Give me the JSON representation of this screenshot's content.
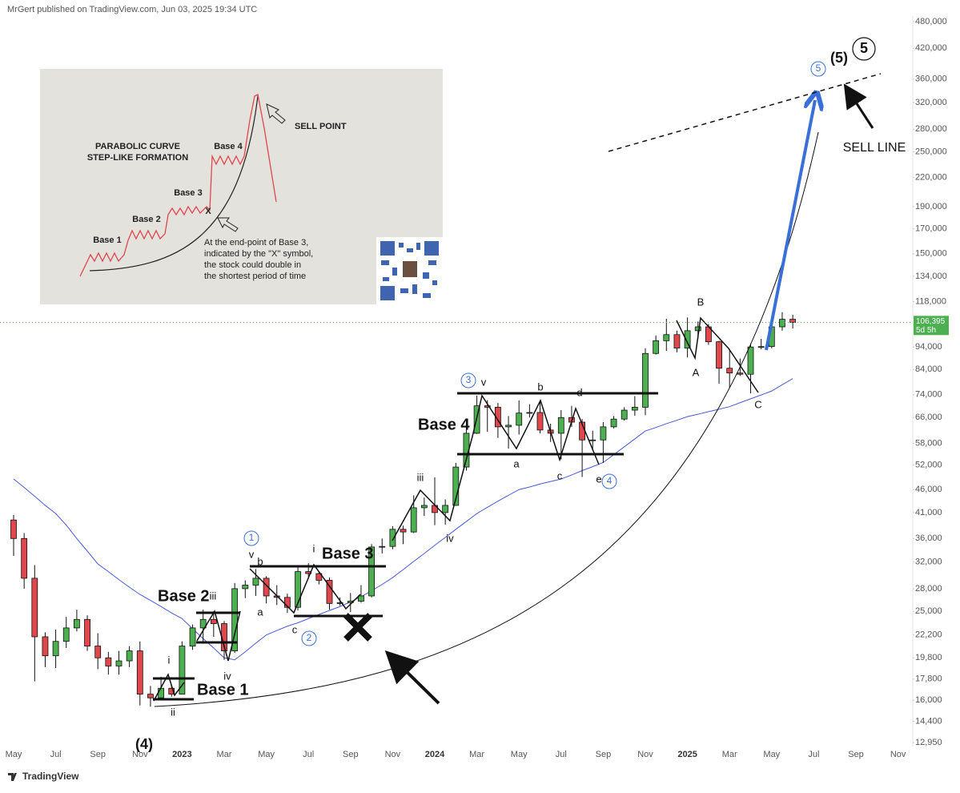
{
  "header": {
    "text": "MrGert published on TradingView.com, Jun 03, 2025 19:34 UTC"
  },
  "footer": {
    "text": "TradingView"
  },
  "inset": {
    "title_lines": [
      "PARABOLIC CURVE",
      "STEP-LIKE FORMATION"
    ],
    "sell_point": "SELL POINT",
    "bases": [
      "Base 1",
      "Base 2",
      "Base 3",
      "Base 4"
    ],
    "x_mark": "X",
    "note_lines": [
      "At the end-point of Base 3,",
      "indicated by the \"X\" symbol,",
      "the stock could double in",
      "the shortest period of time"
    ]
  },
  "chart_data": {
    "type": "candlestick",
    "log_scale": true,
    "grid": false,
    "up_color": "#4caf50",
    "down_color": "#e0474c",
    "ma_color": "#4a5ad8",
    "categories": [
      "May",
      null,
      null,
      null,
      "Jul",
      null,
      null,
      null,
      "Sep",
      null,
      null,
      null,
      "Nov",
      null,
      null,
      null,
      "2023",
      null,
      null,
      null,
      "Mar",
      null,
      null,
      null,
      "May",
      null,
      null,
      null,
      "Jul",
      null,
      null,
      null,
      "Sep",
      null,
      null,
      null,
      "Nov",
      null,
      null,
      null,
      "2024",
      null,
      null,
      null,
      "Mar",
      null,
      null,
      null,
      "May",
      null,
      null,
      null,
      "Jul",
      null,
      null,
      null,
      "Sep",
      null,
      null,
      null,
      "Nov",
      null,
      null,
      null,
      "2025",
      null,
      null,
      null,
      "Mar",
      null,
      null,
      null,
      "May",
      null,
      null,
      null,
      "Jul",
      null,
      null,
      null,
      "Sep",
      null,
      null,
      null,
      "Nov"
    ],
    "open": [
      39500,
      36000,
      29500,
      22000,
      20000,
      21500,
      23000,
      24000,
      21000,
      19800,
      19000,
      19500,
      20500,
      16500,
      16200,
      17000,
      16500,
      21000,
      23000,
      24000,
      23500,
      20500,
      28000,
      28500,
      29500,
      27000,
      26800,
      25500,
      30500,
      30200,
      29200,
      26000,
      26100,
      26300,
      27000,
      34500,
      34600,
      37700,
      37200,
      42000,
      42500,
      41000,
      42500,
      51500,
      61000,
      70000,
      69500,
      63000,
      63500,
      67500,
      67700,
      62000,
      61000,
      66000,
      64500,
      59000,
      59000,
      63000,
      65500,
      68500,
      69500,
      91000,
      97000,
      100000,
      93500,
      102000,
      104000,
      96500,
      84500,
      82500,
      82000,
      94000,
      94200,
      104000,
      108000,
      null,
      null,
      null,
      null,
      null,
      null,
      null,
      null,
      null,
      null
    ],
    "high": [
      40500,
      37000,
      31500,
      22500,
      22800,
      24300,
      25200,
      24500,
      22400,
      20400,
      20500,
      21000,
      21500,
      17200,
      18000,
      17300,
      21500,
      23400,
      25200,
      25000,
      23800,
      28800,
      29200,
      30900,
      29800,
      28500,
      27300,
      31300,
      31800,
      30500,
      29600,
      26800,
      27400,
      28500,
      35000,
      36000,
      38300,
      38400,
      44700,
      44200,
      48900,
      43800,
      52600,
      64000,
      73700,
      72000,
      71000,
      66500,
      71900,
      70600,
      71800,
      64000,
      68500,
      70000,
      65500,
      61800,
      64500,
      66500,
      69500,
      73500,
      93400,
      99600,
      108300,
      102000,
      109000,
      106800,
      105500,
      97000,
      92800,
      88700,
      95700,
      97900,
      104900,
      111900,
      110500,
      null,
      null,
      null,
      null,
      null,
      null,
      null,
      null,
      null,
      null
    ],
    "low": [
      33000,
      28000,
      17600,
      18900,
      18800,
      20800,
      22600,
      20500,
      18700,
      18200,
      18200,
      18900,
      15600,
      15500,
      16000,
      16300,
      16500,
      20600,
      21500,
      22000,
      19600,
      20300,
      26700,
      27000,
      26000,
      25800,
      24800,
      25100,
      29700,
      28600,
      25200,
      25700,
      24900,
      26100,
      26800,
      33400,
      34100,
      35000,
      37000,
      40300,
      38500,
      38600,
      42400,
      50600,
      60800,
      61500,
      59600,
      56500,
      60600,
      66000,
      61000,
      58400,
      53500,
      63000,
      49000,
      56100,
      52600,
      62500,
      65000,
      66600,
      66800,
      90500,
      92200,
      91500,
      89200,
      98000,
      95000,
      78200,
      76600,
      81300,
      74500,
      92900,
      93400,
      102000,
      103100,
      null,
      null,
      null,
      null,
      null,
      null,
      null,
      null,
      null,
      null
    ],
    "close": [
      36000,
      29500,
      22000,
      20000,
      21500,
      23000,
      24000,
      21000,
      19800,
      19000,
      19500,
      20500,
      16500,
      16200,
      17000,
      16500,
      21000,
      23000,
      24000,
      23500,
      20500,
      28000,
      28500,
      29500,
      27000,
      26800,
      25500,
      30500,
      30200,
      29200,
      26000,
      26100,
      26300,
      27000,
      34500,
      34600,
      37700,
      37200,
      42000,
      42500,
      41000,
      42500,
      51500,
      61000,
      70000,
      69500,
      63000,
      63500,
      67500,
      67700,
      62000,
      61000,
      66000,
      64500,
      59000,
      59000,
      63000,
      65500,
      68500,
      69500,
      91000,
      97000,
      100000,
      93500,
      102000,
      104000,
      96500,
      84500,
      82500,
      82000,
      94000,
      94200,
      104000,
      108000,
      106395,
      null,
      null,
      null,
      null,
      null,
      null,
      null,
      null,
      null,
      null
    ],
    "ma_values": [
      48500,
      46500,
      44500,
      42500,
      40800,
      38500,
      36000,
      33800,
      31700,
      30500,
      29300,
      28200,
      27200,
      26400,
      25600,
      24800,
      24100,
      22900,
      21800,
      20800,
      19800,
      19600,
      20400,
      21300,
      22200,
      22700,
      23200,
      23600,
      24100,
      24600,
      25100,
      25600,
      26200,
      26900,
      27700,
      28600,
      29600,
      30800,
      32100,
      33400,
      34800,
      36200,
      37700,
      39200,
      40800,
      42100,
      43400,
      44700,
      46000,
      46600,
      47300,
      47900,
      48500,
      49500,
      50600,
      51600,
      52700,
      54800,
      57000,
      59300,
      61700,
      62800,
      64000,
      65100,
      66300,
      67100,
      68000,
      68800,
      69700,
      71100,
      72500,
      73900,
      75400,
      77800,
      80200,
      null,
      null,
      null,
      null,
      null,
      null,
      null,
      null,
      null,
      null
    ],
    "last_label": "106,395",
    "countdown": "5d 5h",
    "ylim": [
      12950,
      480000
    ],
    "yticks": [
      {
        "value": 12950,
        "label": "12,950"
      },
      {
        "value": 14400,
        "label": "14,400"
      },
      {
        "value": 16000,
        "label": "16,000"
      },
      {
        "value": 17800,
        "label": "17,800"
      },
      {
        "value": 19800,
        "label": "19,800"
      },
      {
        "value": 22200,
        "label": "22,200"
      },
      {
        "value": 25000,
        "label": "25,000"
      },
      {
        "value": 28000,
        "label": "28,000"
      },
      {
        "value": 32000,
        "label": "32,000"
      },
      {
        "value": 36000,
        "label": "36,000"
      },
      {
        "value": 41000,
        "label": "41,000"
      },
      {
        "value": 46000,
        "label": "46,000"
      },
      {
        "value": 52000,
        "label": "52,000"
      },
      {
        "value": 58000,
        "label": "58,000"
      },
      {
        "value": 66000,
        "label": "66,000"
      },
      {
        "value": 74000,
        "label": "74,000"
      },
      {
        "value": 84000,
        "label": "84,000"
      },
      {
        "value": 94000,
        "label": "94,000"
      },
      {
        "value": 118000,
        "label": "118,000"
      },
      {
        "value": 134000,
        "label": "134,000"
      },
      {
        "value": 150000,
        "label": "150,000"
      },
      {
        "value": 170000,
        "label": "170,000"
      },
      {
        "value": 190000,
        "label": "190,000"
      },
      {
        "value": 220000,
        "label": "220,000"
      },
      {
        "value": 250000,
        "label": "250,000"
      },
      {
        "value": 280000,
        "label": "280,000"
      },
      {
        "value": 320000,
        "label": "320,000"
      },
      {
        "value": 360000,
        "label": "360,000"
      },
      {
        "value": 420000,
        "label": "420,000"
      },
      {
        "value": 480000,
        "label": "480,000"
      }
    ],
    "annotations": [
      "Base 1",
      "Base 2",
      "Base 3",
      "Base 4",
      "i",
      "ii",
      "iii",
      "iv",
      "v",
      "b",
      "a",
      "c",
      "i",
      "iii",
      "iv",
      "v",
      "b",
      "d",
      "a",
      "c",
      "e",
      "A",
      "B",
      "C",
      "1",
      "2",
      "3",
      "4",
      "5",
      "(5)",
      "5",
      "(4)",
      "SELL LINE"
    ]
  }
}
